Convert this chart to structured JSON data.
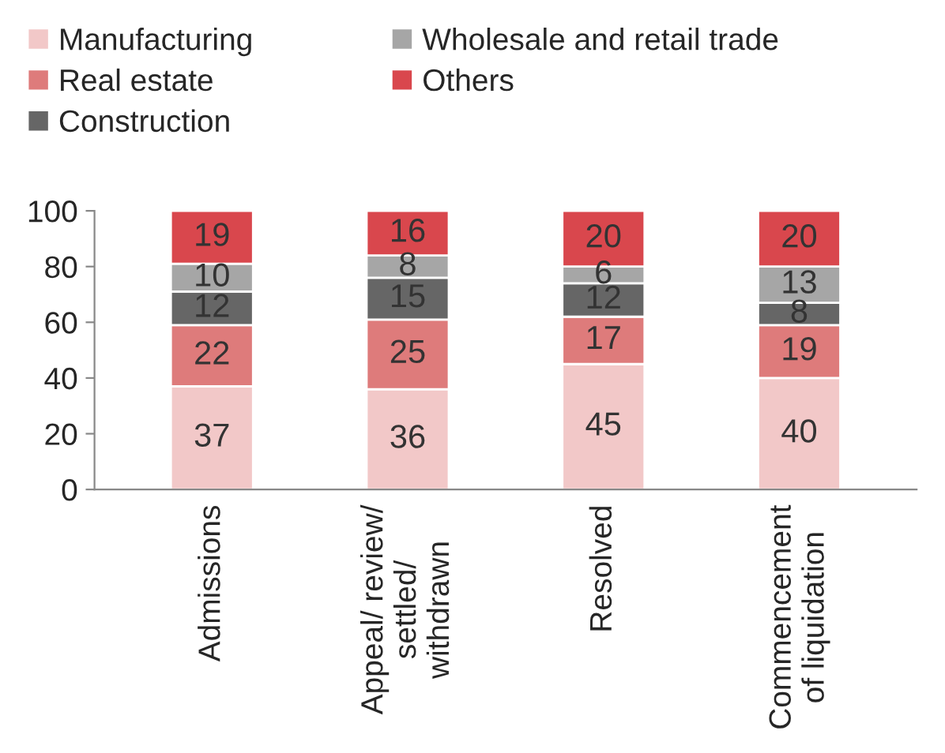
{
  "chart_data": {
    "type": "bar",
    "stacked": true,
    "categories": [
      "Admissions",
      "Appeal/ review/\nsettled/\nwithdrawn",
      "Resolved",
      "Commencement\nof liquidation"
    ],
    "series": [
      {
        "name": "Manufacturing",
        "color": "#f2c8c8",
        "values": [
          37,
          36,
          45,
          40
        ]
      },
      {
        "name": "Real estate",
        "color": "#de7b7b",
        "values": [
          22,
          25,
          17,
          19
        ]
      },
      {
        "name": "Construction",
        "color": "#666666",
        "values": [
          12,
          15,
          12,
          8
        ]
      },
      {
        "name": "Wholesale and retail trade",
        "color": "#a6a6a6",
        "values": [
          10,
          8,
          6,
          13
        ]
      },
      {
        "name": "Others",
        "color": "#d9474d",
        "values": [
          19,
          16,
          20,
          20
        ]
      }
    ],
    "ylim": [
      0,
      100
    ],
    "yticks": [
      0,
      20,
      40,
      60,
      80,
      100
    ],
    "data_labels": true,
    "legend": "top",
    "grid": false
  }
}
